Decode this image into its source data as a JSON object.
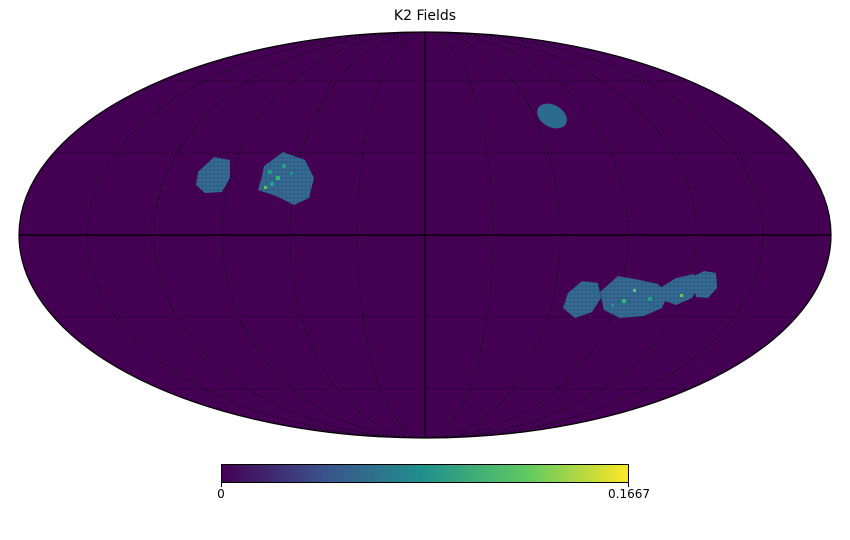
{
  "title": "K2 Fields",
  "colormap": {
    "name": "viridis",
    "stops": [
      "#440154",
      "#3b528b",
      "#21918c",
      "#5ec962",
      "#fde725"
    ],
    "background": "#440154"
  },
  "colorbar": {
    "min_label": "0",
    "max_label": "0.1667",
    "range": [
      0,
      0.1667
    ]
  },
  "projection": "mollweide",
  "graticule": {
    "shown": true,
    "style": "dotted"
  }
}
